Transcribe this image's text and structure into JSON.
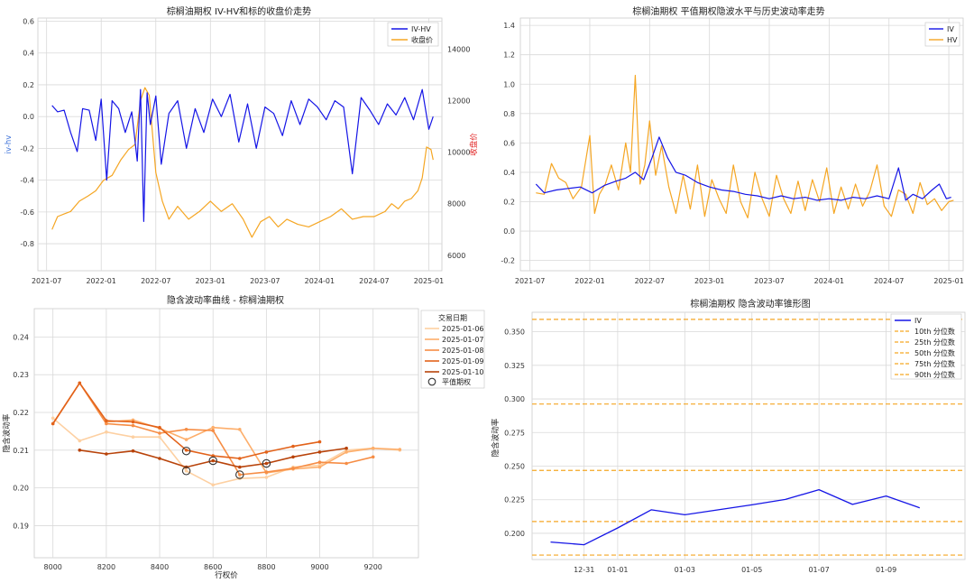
{
  "charts": {
    "p1": {
      "title": "棕榈油期权 IV-HV和标的收盘价走势",
      "ylabel_left": "iv-hv",
      "ylabel_right": "收盘价",
      "left_ticks": [
        "-0.8",
        "-0.6",
        "-0.4",
        "-0.2",
        "0.0",
        "0.2",
        "0.4",
        "0.6"
      ],
      "right_ticks": [
        "6000",
        "8000",
        "10000",
        "12000",
        "14000"
      ],
      "x_ticks": [
        "2021-07",
        "2022-01",
        "2022-07",
        "2023-01",
        "2023-07",
        "2024-01",
        "2024-07",
        "2025-01"
      ],
      "legend": [
        "IV-HV",
        "收盘价"
      ],
      "colors": {
        "ivhv": "#1515e6",
        "close": "#f5a623",
        "right_axis": "#e02020",
        "left_axis": "#3a6fd8"
      }
    },
    "p2": {
      "title": "棕榈油期权 平值期权隐波水平与历史波动率走势",
      "y_ticks": [
        "-0.2",
        "0.0",
        "0.2",
        "0.4",
        "0.6",
        "0.8",
        "1.0",
        "1.2",
        "1.4"
      ],
      "x_ticks": [
        "2021-07",
        "2022-01",
        "2022-07",
        "2023-01",
        "2023-07",
        "2024-01",
        "2024-07",
        "2025-01"
      ],
      "legend": [
        "IV",
        "HV"
      ],
      "colors": {
        "iv": "#1515e6",
        "hv": "#f5a623"
      }
    },
    "p3": {
      "title": "隐含波动率曲线 - 棕榈油期权",
      "xlabel": "行权价",
      "ylabel": "隐含波动率",
      "y_ticks": [
        "0.19",
        "0.20",
        "0.21",
        "0.22",
        "0.23",
        "0.24"
      ],
      "x_ticks": [
        "8000",
        "8200",
        "8400",
        "8600",
        "8800",
        "9000",
        "9200"
      ],
      "legend_title": "交易日期",
      "legend": [
        "2025-01-06",
        "2025-01-07",
        "2025-01-08",
        "2025-01-09",
        "2025-01-10"
      ],
      "atm_label": "平值期权",
      "colors": [
        "#fdd0a2",
        "#fdae6b",
        "#f68d45",
        "#e2621a",
        "#b8430a"
      ]
    },
    "p4": {
      "title": "棕榈油期权 隐含波动率锥形图",
      "ylabel": "隐含波动率",
      "y_ticks": [
        "0.200",
        "0.225",
        "0.250",
        "0.275",
        "0.300",
        "0.325",
        "0.350"
      ],
      "x_ticks": [
        "12-31",
        "01-01",
        "01-03",
        "01-05",
        "01-07",
        "01-09"
      ],
      "legend": [
        "IV",
        "10th 分位数",
        "25th 分位数",
        "50th 分位数",
        "75th 分位数",
        "90th 分位数"
      ],
      "colors": {
        "iv": "#1515e6",
        "pct": "#f5a623"
      }
    }
  },
  "chart_data": [
    {
      "type": "line",
      "title": "棕榈油期权 IV-HV和标的收盘价走势",
      "x_range": [
        "2021-07",
        "2025-01"
      ],
      "ylim_left": [
        -0.97,
        0.62
      ],
      "ylim_right": [
        5400,
        15200
      ],
      "series": [
        {
          "name": "IV-HV",
          "axis": "left",
          "x": [
            2021.55,
            2021.6,
            2021.66,
            2021.72,
            2021.78,
            2021.83,
            2021.89,
            2021.95,
            2022.0,
            2022.05,
            2022.1,
            2022.16,
            2022.22,
            2022.28,
            2022.33,
            2022.36,
            2022.39,
            2022.42,
            2022.45,
            2022.5,
            2022.55,
            2022.62,
            2022.7,
            2022.78,
            2022.86,
            2022.94,
            2023.02,
            2023.1,
            2023.18,
            2023.26,
            2023.34,
            2023.42,
            2023.5,
            2023.58,
            2023.66,
            2023.74,
            2023.82,
            2023.9,
            2023.98,
            2024.06,
            2024.14,
            2024.22,
            2024.3,
            2024.38,
            2024.46,
            2024.54,
            2024.62,
            2024.7,
            2024.78,
            2024.86,
            2024.94,
            2025.0,
            2025.04
          ],
          "values": [
            0.07,
            0.03,
            0.04,
            -0.1,
            -0.22,
            0.05,
            0.04,
            -0.15,
            0.11,
            -0.4,
            0.1,
            0.05,
            -0.1,
            0.03,
            -0.28,
            0.17,
            -0.66,
            0.15,
            -0.05,
            0.13,
            -0.3,
            0.02,
            0.1,
            -0.2,
            0.05,
            -0.1,
            0.11,
            0.0,
            0.14,
            -0.16,
            0.08,
            -0.2,
            0.06,
            0.02,
            -0.12,
            0.1,
            -0.05,
            0.11,
            0.06,
            -0.02,
            0.1,
            0.06,
            -0.36,
            0.12,
            0.04,
            -0.05,
            0.08,
            0.01,
            0.12,
            -0.02,
            0.17,
            -0.08,
            0.0
          ]
        },
        {
          "name": "收盘价",
          "axis": "right",
          "x": [
            2021.55,
            2021.6,
            2021.66,
            2021.72,
            2021.8,
            2021.88,
            2021.95,
            2022.02,
            2022.1,
            2022.18,
            2022.25,
            2022.31,
            2022.36,
            2022.4,
            2022.44,
            2022.5,
            2022.56,
            2022.62,
            2022.7,
            2022.8,
            2022.9,
            2023.0,
            2023.1,
            2023.2,
            2023.3,
            2023.38,
            2023.46,
            2023.54,
            2023.62,
            2023.7,
            2023.8,
            2023.9,
            2024.0,
            2024.1,
            2024.2,
            2024.3,
            2024.4,
            2024.5,
            2024.6,
            2024.66,
            2024.72,
            2024.78,
            2024.84,
            2024.9,
            2024.94,
            2024.98,
            2025.02,
            2025.04
          ],
          "values": [
            7000,
            7500,
            7600,
            7700,
            8100,
            8300,
            8500,
            8900,
            9100,
            9700,
            10100,
            10300,
            12000,
            12500,
            12200,
            9200,
            8100,
            7400,
            7900,
            7400,
            7700,
            8100,
            7700,
            8000,
            7400,
            6700,
            7300,
            7500,
            7100,
            7400,
            7200,
            7100,
            7300,
            7500,
            7800,
            7400,
            7500,
            7500,
            7700,
            8000,
            7800,
            8100,
            8200,
            8500,
            9000,
            10200,
            10100,
            9700
          ]
        }
      ]
    },
    {
      "type": "line",
      "title": "棕榈油期权 平值期权隐波水平与历史波动率走势",
      "x_range": [
        "2021-07",
        "2025-01"
      ],
      "ylim": [
        -0.27,
        1.45
      ],
      "series": [
        {
          "name": "IV",
          "x": [
            2021.55,
            2021.62,
            2021.72,
            2021.82,
            2021.92,
            2022.02,
            2022.12,
            2022.22,
            2022.3,
            2022.38,
            2022.45,
            2022.52,
            2022.58,
            2022.65,
            2022.72,
            2022.8,
            2022.9,
            2023.0,
            2023.1,
            2023.2,
            2023.3,
            2023.4,
            2023.5,
            2023.6,
            2023.7,
            2023.8,
            2023.9,
            2024.0,
            2024.1,
            2024.2,
            2024.3,
            2024.4,
            2024.5,
            2024.58,
            2024.64,
            2024.7,
            2024.78,
            2024.86,
            2024.92,
            2024.98,
            2025.02
          ],
          "values": [
            0.32,
            0.26,
            0.28,
            0.29,
            0.3,
            0.26,
            0.31,
            0.34,
            0.36,
            0.4,
            0.35,
            0.5,
            0.64,
            0.5,
            0.4,
            0.38,
            0.33,
            0.3,
            0.28,
            0.27,
            0.25,
            0.24,
            0.22,
            0.24,
            0.22,
            0.23,
            0.21,
            0.22,
            0.21,
            0.23,
            0.22,
            0.24,
            0.22,
            0.43,
            0.21,
            0.25,
            0.22,
            0.28,
            0.32,
            0.22,
            0.23
          ]
        },
        {
          "name": "HV",
          "x": [
            2021.55,
            2021.62,
            2021.68,
            2021.74,
            2021.8,
            2021.86,
            2021.93,
            2022.0,
            2022.04,
            2022.08,
            2022.13,
            2022.18,
            2022.24,
            2022.3,
            2022.34,
            2022.38,
            2022.42,
            2022.46,
            2022.5,
            2022.55,
            2022.6,
            2022.66,
            2022.72,
            2022.78,
            2022.84,
            2022.9,
            2022.96,
            2023.02,
            2023.08,
            2023.14,
            2023.2,
            2023.26,
            2023.32,
            2023.38,
            2023.44,
            2023.5,
            2023.56,
            2023.62,
            2023.68,
            2023.74,
            2023.8,
            2023.86,
            2023.92,
            2023.98,
            2024.04,
            2024.1,
            2024.16,
            2024.22,
            2024.28,
            2024.34,
            2024.4,
            2024.46,
            2024.52,
            2024.58,
            2024.64,
            2024.7,
            2024.76,
            2024.82,
            2024.88,
            2024.94,
            2025.0,
            2025.04
          ],
          "values": [
            0.26,
            0.25,
            0.46,
            0.36,
            0.33,
            0.22,
            0.3,
            0.65,
            0.12,
            0.25,
            0.32,
            0.45,
            0.28,
            0.6,
            0.4,
            1.06,
            0.32,
            0.45,
            0.75,
            0.38,
            0.58,
            0.3,
            0.12,
            0.38,
            0.15,
            0.45,
            0.1,
            0.35,
            0.22,
            0.12,
            0.45,
            0.2,
            0.09,
            0.4,
            0.22,
            0.1,
            0.38,
            0.22,
            0.12,
            0.34,
            0.14,
            0.35,
            0.2,
            0.43,
            0.12,
            0.3,
            0.15,
            0.32,
            0.17,
            0.27,
            0.45,
            0.17,
            0.1,
            0.28,
            0.25,
            0.12,
            0.33,
            0.18,
            0.22,
            0.14,
            0.2,
            0.21
          ]
        }
      ]
    },
    {
      "type": "line",
      "title": "隐含波动率曲线 - 棕榈油期权",
      "xlabel": "行权价",
      "ylabel": "隐含波动率",
      "xlim": [
        7930,
        9370
      ],
      "ylim": [
        0.1815,
        0.2475
      ],
      "series": [
        {
          "name": "2025-01-06",
          "x": [
            8000,
            8100,
            8200,
            8300,
            8400,
            8500,
            8600,
            8700,
            8800,
            8900,
            9000,
            9100,
            9200,
            9300
          ],
          "values": [
            0.2185,
            0.2125,
            0.2148,
            0.2135,
            0.2135,
            0.2045,
            0.2008,
            0.2025,
            0.2028,
            0.2055,
            0.206,
            0.21,
            0.2105,
            0.21
          ],
          "atm": {
            "x": 8500,
            "value": 0.2045
          }
        },
        {
          "name": "2025-01-07",
          "x": [
            8200,
            8300,
            8400,
            8500,
            8600,
            8700,
            8800,
            8900,
            9000,
            9100,
            9200,
            9300
          ],
          "values": [
            0.2175,
            0.218,
            0.2158,
            0.2128,
            0.216,
            0.2155,
            0.204,
            0.205,
            0.2055,
            0.2095,
            0.2105,
            0.2102
          ],
          "atm": {
            "x": 8700,
            "value": 0.2035
          }
        },
        {
          "name": "2025-01-08",
          "x": [
            8000,
            8100,
            8200,
            8300,
            8400,
            8500,
            8600,
            8700,
            8800,
            8900,
            9000,
            9100,
            9200
          ],
          "values": [
            0.217,
            0.2278,
            0.217,
            0.2165,
            0.2145,
            0.2155,
            0.2152,
            0.2035,
            0.2042,
            0.2052,
            0.2068,
            0.2065,
            0.2082
          ],
          "atm": {
            "x": 8600,
            "value": 0.2072
          }
        },
        {
          "name": "2025-01-09",
          "x": [
            8000,
            8100,
            8200,
            8300,
            8400,
            8500,
            8600,
            8700,
            8800,
            8900,
            9000
          ],
          "values": [
            0.217,
            0.2278,
            0.2178,
            0.2175,
            0.216,
            0.21,
            0.2085,
            0.2078,
            0.2095,
            0.211,
            0.2122
          ],
          "atm": {
            "x": 8800,
            "value": 0.2065
          }
        },
        {
          "name": "2025-01-10",
          "x": [
            8100,
            8200,
            8300,
            8400,
            8500,
            8600,
            8700,
            8800,
            8900,
            9000,
            9100
          ],
          "values": [
            0.21,
            0.209,
            0.2098,
            0.2078,
            0.2055,
            0.2072,
            0.2055,
            0.2065,
            0.2082,
            0.2095,
            0.2105
          ],
          "atm": {
            "x": 8500,
            "value": 0.2098
          }
        }
      ]
    },
    {
      "type": "line",
      "title": "棕榈油期权 隐含波动率锥形图",
      "ylabel": "隐含波动率",
      "xlim": [
        -1.55,
        11.35
      ],
      "ylim": [
        0.1805,
        0.3645
      ],
      "x_labels_at": {
        "12-31": 0,
        "01-01": 1,
        "01-03": 3,
        "01-05": 5,
        "01-07": 7,
        "01-09": 9
      },
      "series": [
        {
          "name": "IV",
          "x": [
            -1,
            0,
            1,
            2,
            3,
            4,
            5,
            6,
            7,
            8,
            9,
            10
          ],
          "values": [
            0.1935,
            0.1915,
            0.204,
            0.2175,
            0.2138,
            0.2175,
            0.2212,
            0.2252,
            0.2325,
            0.2215,
            0.2278,
            0.219
          ]
        }
      ],
      "percentiles": [
        {
          "name": "10th 分位数",
          "value": 0.1838
        },
        {
          "name": "25th 分位数",
          "value": 0.2088
        },
        {
          "name": "50th 分位数",
          "value": 0.2468
        },
        {
          "name": "75th 分位数",
          "value": 0.2962
        },
        {
          "name": "90th 分位数",
          "value": 0.3592
        }
      ]
    }
  ]
}
